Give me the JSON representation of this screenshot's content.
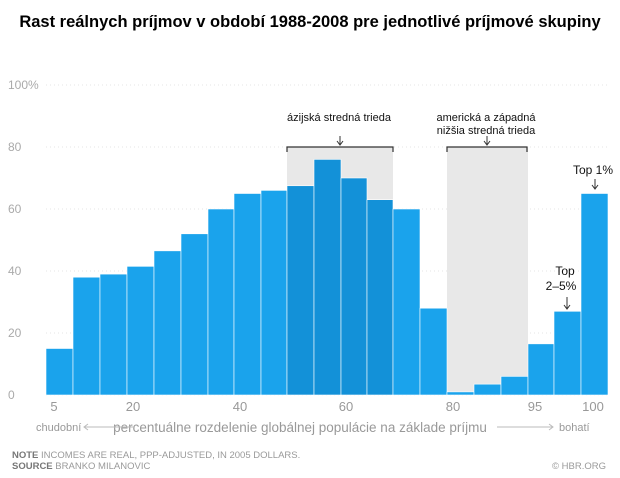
{
  "chart_data": {
    "type": "bar",
    "title": "Rast reálnych príjmov v období 1988-2008 pre jednotlivé príjmové skupiny",
    "xlabel": "percentuálne rozdelenie globálnej populácie na základe príjmu",
    "x_left_label": "chudobní",
    "x_right_label": "bohatí",
    "ylim": [
      0,
      100
    ],
    "y_ticks": [
      "0",
      "20",
      "40",
      "60",
      "80",
      "100%"
    ],
    "x_ticks": [
      "5",
      "20",
      "40",
      "60",
      "80",
      "95",
      "100"
    ],
    "values": [
      15,
      38,
      39,
      41.5,
      46.5,
      52,
      60,
      65,
      66,
      67.5,
      76,
      70,
      63,
      60,
      28,
      1,
      3.5,
      6,
      16.5,
      27,
      65
    ],
    "bar_color": "#1aa3ec",
    "highlight_color": "#e8e8e8",
    "annotations": {
      "asian_middle_class": "ázijská stredná trieda",
      "western_lower_middle_line1": "americká a západná",
      "western_lower_middle_line2": "nižšia stredná trieda",
      "top_2_5_line1": "Top",
      "top_2_5_line2": "2–5%",
      "top_1": "Top 1%"
    }
  },
  "footer": {
    "note_label": "NOTE",
    "note_text": "INCOMES ARE REAL, PPP-ADJUSTED, IN 2005 DOLLARS.",
    "source_label": "SOURCE",
    "source_text": "BRANKO MILANOVIC",
    "brand": "© HBR.ORG"
  }
}
